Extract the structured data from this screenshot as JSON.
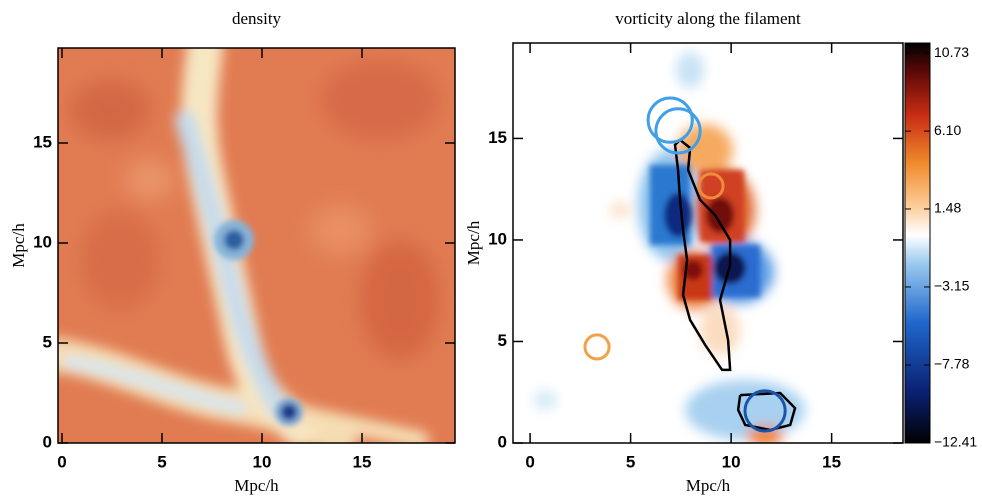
{
  "chart_data": [
    {
      "type": "heatmap",
      "title": "density",
      "xlabel": "Mpc/h",
      "ylabel": "Mpc/h",
      "xlim": [
        -0.2,
        19.65
      ],
      "ylim": [
        0,
        19.75
      ],
      "xticks": [
        0,
        5,
        10,
        15
      ],
      "yticks": [
        0,
        5,
        10,
        15
      ]
    },
    {
      "type": "heatmap",
      "title": "vorticity along the filament",
      "xlabel": "Mpc/h",
      "ylabel": "Mpc/h",
      "xlim": [
        -0.85,
        18.55
      ],
      "ylim": [
        0,
        19.7
      ],
      "xticks": [
        0,
        5,
        10,
        15
      ],
      "yticks": [
        0,
        5,
        10,
        15
      ],
      "colorbar": {
        "lim": [
          -12.41,
          11.33
        ],
        "ticks": [
          10.73,
          {
            "value": 6.1,
            "label": "6.10"
          },
          1.48,
          {
            "value": -3.15,
            "label": "−3.15"
          },
          {
            "value": -7.78,
            "label": "−7.78"
          },
          {
            "value": -12.41,
            "label": "−12.41"
          }
        ]
      },
      "circles": [
        {
          "x": 6.97,
          "y": 15.9,
          "r": 1.1,
          "color": "#3fa0e8"
        },
        {
          "x": 7.36,
          "y": 15.37,
          "r": 1.1,
          "color": "#3fa0e8"
        },
        {
          "x": 9.0,
          "y": 12.66,
          "r": 0.6,
          "color": "#f08a3c"
        },
        {
          "x": 3.33,
          "y": 4.73,
          "r": 0.6,
          "color": "#f4a04a"
        },
        {
          "x": 11.69,
          "y": 1.58,
          "r": 1.0,
          "color": "#1a55a8"
        }
      ],
      "contour_color": "#000000",
      "contours": [
        {
          "x": [
            7.46,
            7.96,
            7.86,
            8.46,
            9.2,
            9.95,
            9.95,
            9.45,
            9.85,
            9.95,
            9.55,
            8.71,
            7.96,
            7.61,
            7.81,
            7.61,
            7.46,
            7.36,
            7.21,
            7.46
          ],
          "y": [
            14.93,
            14.53,
            13.45,
            11.97,
            11.23,
            10.0,
            8.77,
            7.04,
            5.07,
            3.6,
            3.6,
            4.83,
            6.06,
            7.29,
            9.01,
            10.49,
            11.97,
            13.45,
            14.68,
            14.93
          ]
        },
        {
          "x": [
            10.45,
            12.44,
            13.18,
            12.94,
            11.94,
            10.7,
            10.35,
            10.45
          ],
          "y": [
            2.36,
            2.46,
            1.72,
            0.89,
            0.64,
            0.89,
            1.63,
            2.36
          ]
        }
      ]
    }
  ]
}
